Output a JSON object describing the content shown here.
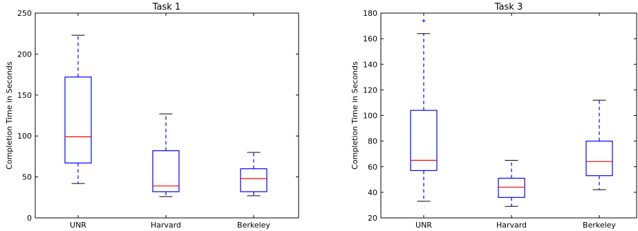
{
  "chart_data": [
    {
      "type": "box",
      "title": "Task 1",
      "ylabel": "Completion Time in Seconds",
      "xlabel": "",
      "ylim": [
        0,
        250
      ],
      "yticks": [
        0,
        50,
        100,
        150,
        200,
        250
      ],
      "categories": [
        "UNR",
        "Harvard",
        "Berkeley"
      ],
      "boxes": [
        {
          "category": "UNR",
          "whisker_low": 42,
          "q1": 67,
          "median": 99,
          "q3": 172,
          "whisker_high": 223,
          "outliers": []
        },
        {
          "category": "Harvard",
          "whisker_low": 26,
          "q1": 32,
          "median": 39,
          "q3": 82,
          "whisker_high": 127,
          "outliers": []
        },
        {
          "category": "Berkeley",
          "whisker_low": 27,
          "q1": 32,
          "median": 48,
          "q3": 60,
          "whisker_high": 80,
          "outliers": []
        }
      ],
      "grid": false,
      "colors": {
        "box": "#0000ff",
        "median": "#ff0000",
        "cap": "#000000"
      }
    },
    {
      "type": "box",
      "title": "Task 3",
      "ylabel": "Completion Time in Seconds",
      "xlabel": "",
      "ylim": [
        20,
        180
      ],
      "yticks": [
        20,
        40,
        60,
        80,
        100,
        120,
        140,
        160,
        180
      ],
      "categories": [
        "UNR",
        "Harvard",
        "Berkeley"
      ],
      "boxes": [
        {
          "category": "UNR",
          "whisker_low": 33,
          "q1": 57,
          "median": 65,
          "q3": 104,
          "whisker_high": 164,
          "outliers": [
            174
          ]
        },
        {
          "category": "Harvard",
          "whisker_low": 29,
          "q1": 36,
          "median": 44,
          "q3": 51,
          "whisker_high": 65,
          "outliers": []
        },
        {
          "category": "Berkeley",
          "whisker_low": 42,
          "q1": 53,
          "median": 64,
          "q3": 80,
          "whisker_high": 112,
          "outliers": []
        }
      ],
      "grid": false,
      "colors": {
        "box": "#0000ff",
        "median": "#ff0000",
        "cap": "#000000"
      }
    }
  ]
}
